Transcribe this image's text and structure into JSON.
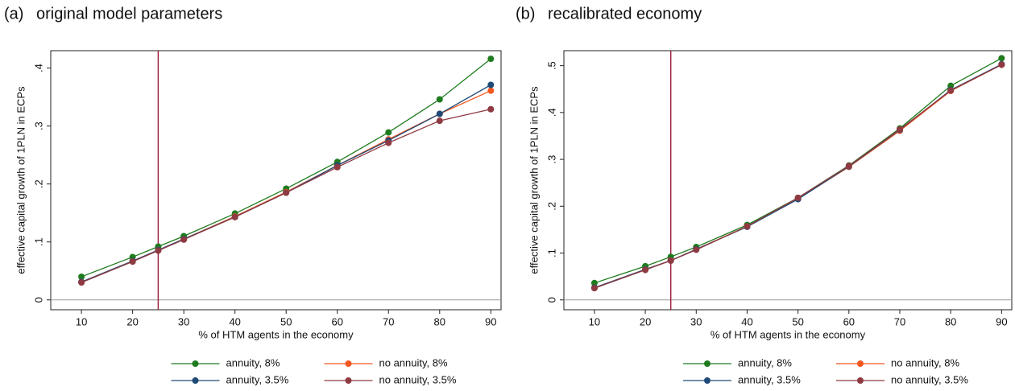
{
  "chart_data": [
    {
      "type": "line",
      "panel": "(a)",
      "title": "original model parameters",
      "xlabel": "% of HTM agents in the economy",
      "ylabel": "effective capital growth of 1PLN in ECPs",
      "x": [
        10,
        20,
        25,
        30,
        40,
        50,
        60,
        70,
        80,
        90
      ],
      "series": [
        {
          "name": "annuity, 8%",
          "color": "#1e7b1e",
          "values": [
            0.04,
            0.074,
            0.092,
            0.11,
            0.149,
            0.192,
            0.238,
            0.289,
            0.346,
            0.416
          ]
        },
        {
          "name": "no annuity, 8%",
          "color": "#f4561e",
          "values": [
            0.031,
            0.067,
            0.086,
            0.105,
            0.144,
            0.186,
            0.232,
            0.277,
            0.321,
            0.361
          ]
        },
        {
          "name": "annuity, 3.5%",
          "color": "#1f4a78",
          "values": [
            0.031,
            0.067,
            0.086,
            0.105,
            0.143,
            0.185,
            0.232,
            0.275,
            0.321,
            0.371
          ]
        },
        {
          "name": "no annuity, 3.5%",
          "color": "#8f3a42",
          "values": [
            0.03,
            0.066,
            0.085,
            0.104,
            0.143,
            0.185,
            0.229,
            0.271,
            0.309,
            0.329
          ]
        }
      ],
      "xlim": [
        4,
        92
      ],
      "xticks": [
        10,
        20,
        30,
        40,
        50,
        60,
        70,
        80,
        90
      ],
      "ylim": [
        -0.017,
        0.43
      ],
      "yticks": [
        0,
        {
          "value": 0.1,
          "label": ".1"
        },
        {
          "value": 0.2,
          "label": ".2"
        },
        {
          "value": 0.3,
          "label": ".3"
        },
        {
          "value": 0.4,
          "label": ".4"
        }
      ],
      "vline": 25,
      "vline_color": "#a0223f",
      "hline": 0,
      "grid": false
    },
    {
      "type": "line",
      "panel": "(b)",
      "title": "recalibrated economy",
      "xlabel": "% of HTM agents in the economy",
      "ylabel": "effective capital growth of 1PLN in ECPs",
      "x": [
        10,
        20,
        25,
        30,
        40,
        50,
        60,
        70,
        80,
        90
      ],
      "series": [
        {
          "name": "annuity, 8%",
          "color": "#1e7b1e",
          "values": [
            0.036,
            0.072,
            0.092,
            0.113,
            0.16,
            0.218,
            0.287,
            0.366,
            0.457,
            0.516
          ]
        },
        {
          "name": "no annuity, 8%",
          "color": "#f4561e",
          "values": [
            0.026,
            0.065,
            0.084,
            0.108,
            0.157,
            0.216,
            0.284,
            0.361,
            0.446,
            0.502
          ]
        },
        {
          "name": "annuity, 3.5%",
          "color": "#1f4a78",
          "values": [
            0.026,
            0.065,
            0.084,
            0.108,
            0.156,
            0.215,
            0.285,
            0.363,
            0.448,
            0.503
          ]
        },
        {
          "name": "no annuity, 3.5%",
          "color": "#8f3a42",
          "values": [
            0.025,
            0.064,
            0.084,
            0.107,
            0.157,
            0.218,
            0.286,
            0.364,
            0.447,
            0.502
          ]
        }
      ],
      "xlim": [
        4,
        92
      ],
      "xticks": [
        10,
        20,
        30,
        40,
        50,
        60,
        70,
        80,
        90
      ],
      "ylim": [
        -0.021,
        0.532
      ],
      "yticks": [
        0,
        {
          "value": 0.1,
          "label": ".1"
        },
        {
          "value": 0.2,
          "label": ".2"
        },
        {
          "value": 0.3,
          "label": ".3"
        },
        {
          "value": 0.4,
          "label": ".4"
        },
        {
          "value": 0.5,
          "label": ".5"
        }
      ],
      "vline": 25,
      "vline_color": "#a0223f",
      "hline": 0,
      "grid": false
    }
  ]
}
